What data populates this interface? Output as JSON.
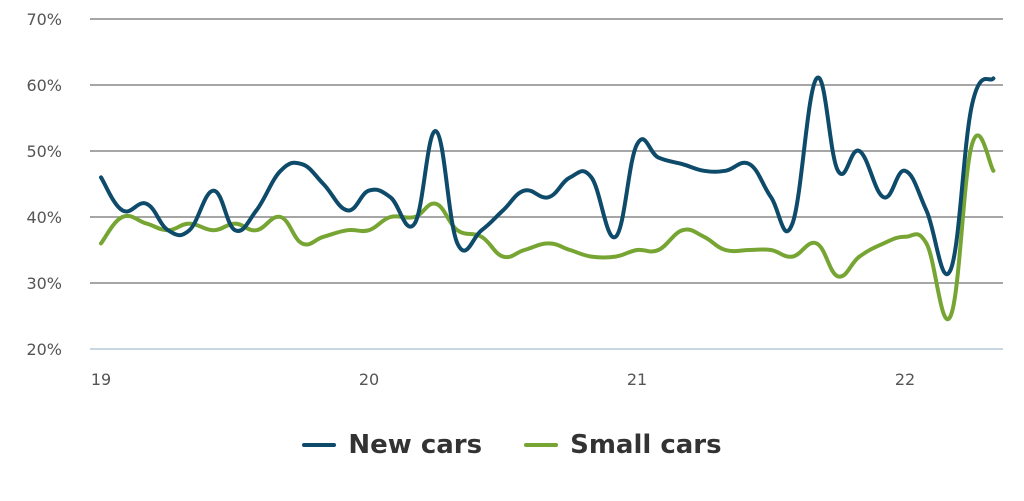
{
  "chart_data": {
    "type": "line",
    "x_ticks": [
      "19",
      "20",
      "21",
      "22"
    ],
    "y_ticks": [
      "20%",
      "30%",
      "40%",
      "50%",
      "60%",
      "70%"
    ],
    "ylim": [
      20,
      70
    ],
    "xlim": [
      19,
      22.37
    ],
    "grid": "horizontal",
    "legend_position": "bottom",
    "colors": {
      "new_cars": "#0e4b6b",
      "small_cars": "#77a534",
      "grid": "#888888",
      "axis": "#c9d6e3"
    },
    "series": [
      {
        "name": "New cars",
        "color": "#0e4b6b",
        "x": [
          19.0,
          19.08,
          19.17,
          19.25,
          19.33,
          19.42,
          19.5,
          19.58,
          19.67,
          19.75,
          19.83,
          19.92,
          20.0,
          20.08,
          20.17,
          20.25,
          20.33,
          20.42,
          20.5,
          20.58,
          20.67,
          20.75,
          20.83,
          20.92,
          21.0,
          21.08,
          21.17,
          21.25,
          21.33,
          21.42,
          21.5,
          21.58,
          21.67,
          21.75,
          21.83,
          21.92,
          22.0,
          22.08,
          22.17,
          22.25,
          22.33
        ],
        "y": [
          46,
          41,
          42,
          38,
          38,
          44,
          38,
          41,
          47,
          48,
          45,
          41,
          44,
          43,
          39,
          53,
          36,
          38,
          41,
          44,
          43,
          46,
          46,
          37,
          51,
          49,
          48,
          47,
          47,
          48,
          43,
          39,
          61,
          47,
          50,
          43,
          47,
          41,
          32,
          57,
          61
        ]
      },
      {
        "name": "Small cars",
        "color": "#77a534",
        "x": [
          19.0,
          19.08,
          19.17,
          19.25,
          19.33,
          19.42,
          19.5,
          19.58,
          19.67,
          19.75,
          19.83,
          19.92,
          20.0,
          20.08,
          20.17,
          20.25,
          20.33,
          20.42,
          20.5,
          20.58,
          20.67,
          20.75,
          20.83,
          20.92,
          21.0,
          21.08,
          21.17,
          21.25,
          21.33,
          21.42,
          21.5,
          21.58,
          21.67,
          21.75,
          21.83,
          21.92,
          22.0,
          22.08,
          22.17,
          22.25,
          22.33
        ],
        "y": [
          36,
          40,
          39,
          38,
          39,
          38,
          39,
          38,
          40,
          36,
          37,
          38,
          38,
          40,
          40,
          42,
          38,
          37,
          34,
          35,
          36,
          35,
          34,
          34,
          35,
          35,
          38,
          37,
          35,
          35,
          35,
          34,
          36,
          31,
          34,
          36,
          37,
          36,
          25,
          51,
          47
        ]
      }
    ]
  }
}
